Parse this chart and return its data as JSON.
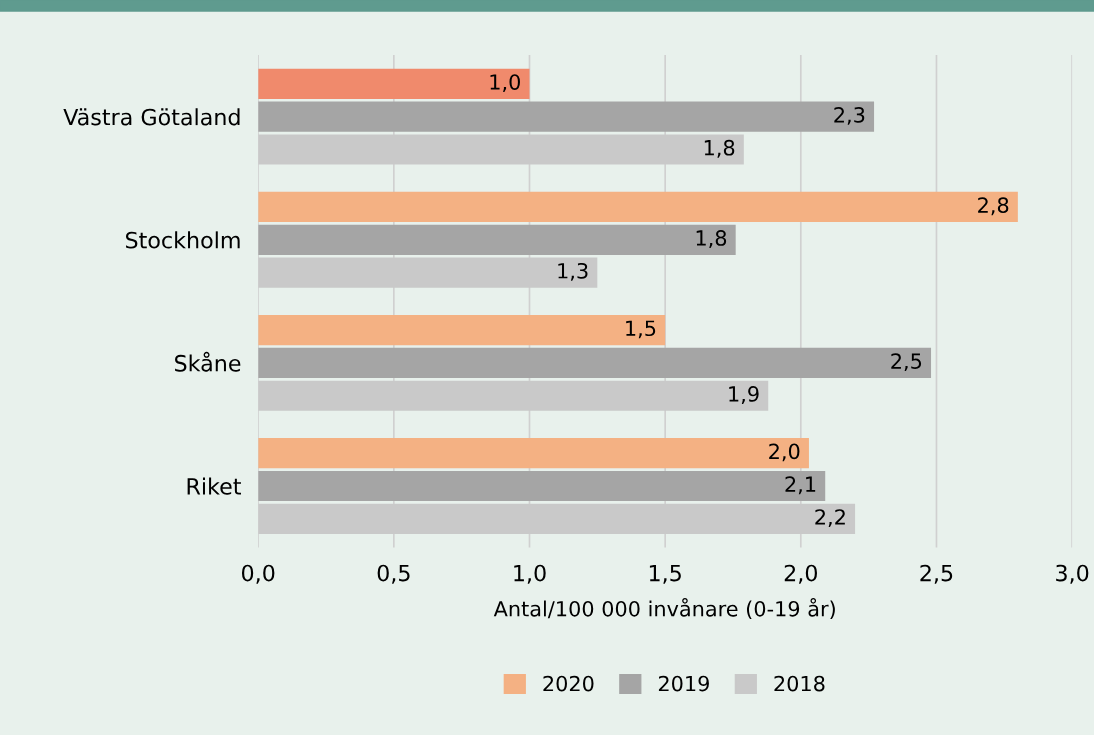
{
  "chart_data": {
    "type": "bar",
    "orientation": "horizontal",
    "xlabel": "Antal/100 000 invånare (0-19 år)",
    "categories": [
      "Västra Götaland",
      "Stockholm",
      "Skåne",
      "Riket"
    ],
    "series": [
      {
        "name": "2020",
        "color": "#f4b183",
        "colors": [
          "#f08a6c",
          "#f4b183",
          "#f4b183",
          "#f4b183"
        ],
        "values": [
          1.0,
          2.8,
          1.5,
          2.03
        ],
        "value_labels": [
          "1,0",
          "2,8",
          "1,5",
          "2,0"
        ]
      },
      {
        "name": "2019",
        "color": "#a5a5a5",
        "values": [
          2.27,
          1.76,
          2.48,
          2.09
        ],
        "value_labels": [
          "2,3",
          "1,8",
          "2,5",
          "2,1"
        ]
      },
      {
        "name": "2018",
        "color": "#c9c9c9",
        "values": [
          1.79,
          1.25,
          1.88,
          2.2
        ],
        "value_labels": [
          "1,8",
          "1,3",
          "1,9",
          "2,2"
        ]
      }
    ],
    "xlim": [
      0,
      3
    ],
    "xticks": [
      {
        "value": 0,
        "label": "0,0"
      },
      {
        "value": 0.5,
        "label": "0,5"
      },
      {
        "value": 1,
        "label": "1,0"
      },
      {
        "value": 1.5,
        "label": "1,5"
      },
      {
        "value": 2,
        "label": "2,0"
      },
      {
        "value": 2.5,
        "label": "2,5"
      },
      {
        "value": 3,
        "label": "3,0"
      }
    ],
    "grid": "x",
    "legend": "bottom"
  }
}
